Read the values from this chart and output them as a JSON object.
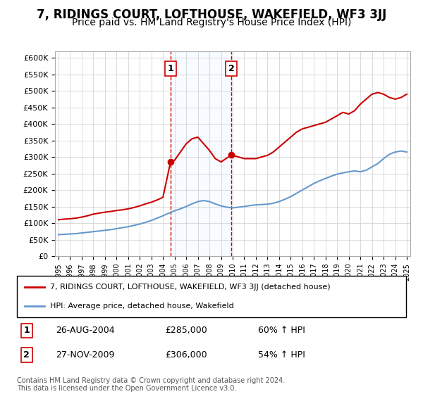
{
  "title": "7, RIDINGS COURT, LOFTHOUSE, WAKEFIELD, WF3 3JJ",
  "subtitle": "Price paid vs. HM Land Registry's House Price Index (HPI)",
  "title_fontsize": 12,
  "subtitle_fontsize": 10,
  "ylabel_ticks": [
    "£0",
    "£50K",
    "£100K",
    "£150K",
    "£200K",
    "£250K",
    "£300K",
    "£350K",
    "£400K",
    "£450K",
    "£500K",
    "£550K",
    "£600K"
  ],
  "ytick_values": [
    0,
    50000,
    100000,
    150000,
    200000,
    250000,
    300000,
    350000,
    400000,
    450000,
    500000,
    550000,
    600000
  ],
  "ylim": [
    0,
    620000
  ],
  "x_start_year": 1995,
  "x_end_year": 2025,
  "xtick_years": [
    1995,
    1996,
    1997,
    1998,
    1999,
    2000,
    2001,
    2002,
    2003,
    2004,
    2005,
    2006,
    2007,
    2008,
    2009,
    2010,
    2011,
    2012,
    2013,
    2014,
    2015,
    2016,
    2017,
    2018,
    2019,
    2020,
    2021,
    2022,
    2023,
    2024,
    2025
  ],
  "sale1_x": 2004.65,
  "sale1_y": 285000,
  "sale1_label": "1",
  "sale1_date": "26-AUG-2004",
  "sale1_price": "£285,000",
  "sale1_hpi": "60% ↑ HPI",
  "sale2_x": 2009.9,
  "sale2_y": 306000,
  "sale2_label": "2",
  "sale2_date": "27-NOV-2009",
  "sale2_price": "£306,000",
  "sale2_hpi": "54% ↑ HPI",
  "red_color": "#cc0000",
  "blue_color": "#6699cc",
  "dashed_vline_color": "#cc0000",
  "shaded_region_color": "#ddeeff",
  "legend_label_red": "7, RIDINGS COURT, LOFTHOUSE, WAKEFIELD, WF3 3JJ (detached house)",
  "legend_label_blue": "HPI: Average price, detached house, Wakefield",
  "footer_text": "Contains HM Land Registry data © Crown copyright and database right 2024.\nThis data is licensed under the Open Government Licence v3.0.",
  "red_line_x": [
    1995.0,
    1995.5,
    1996.0,
    1996.5,
    1997.0,
    1997.5,
    1998.0,
    1998.5,
    1999.0,
    1999.5,
    2000.0,
    2000.5,
    2001.0,
    2001.5,
    2002.0,
    2002.5,
    2003.0,
    2003.5,
    2004.0,
    2004.65,
    2005.0,
    2005.5,
    2006.0,
    2006.5,
    2007.0,
    2007.5,
    2008.0,
    2008.5,
    2009.0,
    2009.9,
    2010.0,
    2010.5,
    2011.0,
    2011.5,
    2012.0,
    2012.5,
    2013.0,
    2013.5,
    2014.0,
    2014.5,
    2015.0,
    2015.5,
    2016.0,
    2016.5,
    2017.0,
    2017.5,
    2018.0,
    2018.5,
    2019.0,
    2019.5,
    2020.0,
    2020.5,
    2021.0,
    2021.5,
    2022.0,
    2022.5,
    2023.0,
    2023.5,
    2024.0,
    2024.5,
    2025.0
  ],
  "red_line_y": [
    110000,
    112000,
    113000,
    115000,
    118000,
    122000,
    127000,
    130000,
    133000,
    135000,
    138000,
    140000,
    143000,
    147000,
    152000,
    158000,
    163000,
    170000,
    178000,
    285000,
    290000,
    315000,
    340000,
    355000,
    360000,
    340000,
    320000,
    295000,
    285000,
    306000,
    305000,
    300000,
    295000,
    295000,
    295000,
    300000,
    305000,
    315000,
    330000,
    345000,
    360000,
    375000,
    385000,
    390000,
    395000,
    400000,
    405000,
    415000,
    425000,
    435000,
    430000,
    440000,
    460000,
    475000,
    490000,
    495000,
    490000,
    480000,
    475000,
    480000,
    490000
  ],
  "blue_line_x": [
    1995.0,
    1995.5,
    1996.0,
    1996.5,
    1997.0,
    1997.5,
    1998.0,
    1998.5,
    1999.0,
    1999.5,
    2000.0,
    2000.5,
    2001.0,
    2001.5,
    2002.0,
    2002.5,
    2003.0,
    2003.5,
    2004.0,
    2004.5,
    2005.0,
    2005.5,
    2006.0,
    2006.5,
    2007.0,
    2007.5,
    2008.0,
    2008.5,
    2009.0,
    2009.5,
    2010.0,
    2010.5,
    2011.0,
    2011.5,
    2012.0,
    2012.5,
    2013.0,
    2013.5,
    2014.0,
    2014.5,
    2015.0,
    2015.5,
    2016.0,
    2016.5,
    2017.0,
    2017.5,
    2018.0,
    2018.5,
    2019.0,
    2019.5,
    2020.0,
    2020.5,
    2021.0,
    2021.5,
    2022.0,
    2022.5,
    2023.0,
    2023.5,
    2024.0,
    2024.5,
    2025.0
  ],
  "blue_line_y": [
    65000,
    66000,
    67000,
    68000,
    70000,
    72000,
    74000,
    76000,
    78000,
    80000,
    83000,
    86000,
    89000,
    93000,
    97000,
    102000,
    108000,
    115000,
    122000,
    130000,
    137000,
    143000,
    150000,
    158000,
    165000,
    168000,
    165000,
    158000,
    152000,
    148000,
    146000,
    148000,
    150000,
    153000,
    155000,
    156000,
    157000,
    160000,
    165000,
    172000,
    180000,
    190000,
    200000,
    210000,
    220000,
    228000,
    235000,
    242000,
    248000,
    252000,
    255000,
    258000,
    255000,
    260000,
    270000,
    280000,
    295000,
    308000,
    315000,
    318000,
    315000
  ]
}
